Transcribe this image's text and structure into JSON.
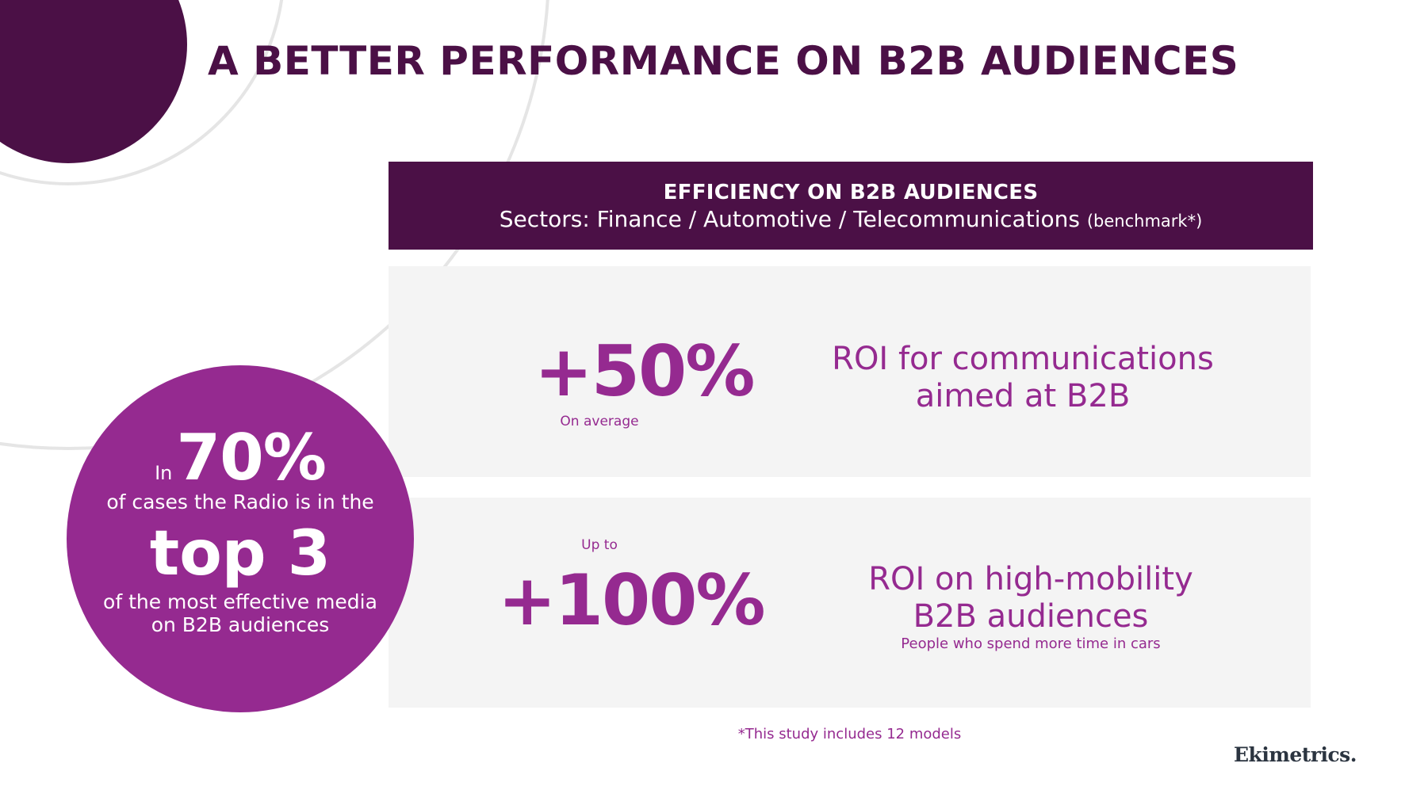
{
  "title": "A BETTER PERFORMANCE ON B2B AUDIENCES",
  "header": {
    "title": "EFFICIENCY ON B2B AUDIENCES",
    "sectors": "Sectors: Finance / Automotive / Telecommunications",
    "benchmark": "(benchmark*)"
  },
  "stats": [
    {
      "value": "+50%",
      "note": "On average",
      "roi_line1": "ROI for communications",
      "roi_line2": "aimed at B2B"
    },
    {
      "prefix": "Up to",
      "value": "+100%",
      "roi_line1": "ROI on high-mobility",
      "roi_line2": "B2B audiences",
      "sub": "People who spend more time in cars"
    }
  ],
  "circle": {
    "in": "In",
    "pct": "70%",
    "line1": "of cases the Radio is in the",
    "top": "top 3",
    "line2": "of the most effective media",
    "line3": "on B2B audiences"
  },
  "footnote": "*This study includes 12 models",
  "logo": "Ekimetrics.",
  "colors": {
    "dark_purple": "#4b1046",
    "purple": "#952a90",
    "panel_bg": "#f4f4f4",
    "ring": "#e5e5e5"
  }
}
